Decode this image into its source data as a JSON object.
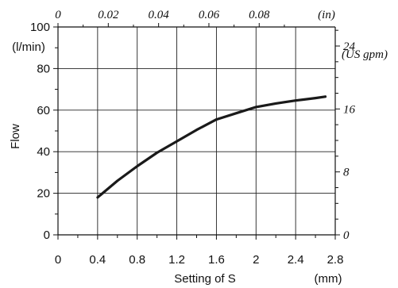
{
  "chart_data": {
    "type": "line",
    "title": "",
    "xlabel": "Setting of S",
    "xunit": "(mm)",
    "ylabel": "Flow",
    "yunit": "(l/min)",
    "xlim": [
      0,
      2.8
    ],
    "ylim": [
      0,
      100
    ],
    "xticks": [
      0,
      0.4,
      0.8,
      1.2,
      1.6,
      2,
      2.4,
      2.8
    ],
    "yticks": [
      0,
      20,
      40,
      60,
      80,
      100
    ],
    "top_axis": {
      "unit": "(in)",
      "ticks": [
        {
          "label": "0",
          "mm": 0
        },
        {
          "label": "0.02",
          "mm": 0.508
        },
        {
          "label": "0.04",
          "mm": 1.016
        },
        {
          "label": "0.06",
          "mm": 1.524
        },
        {
          "label": "0.08",
          "mm": 2.032
        }
      ]
    },
    "right_axis": {
      "unit": "(US gpm)",
      "ticks": [
        {
          "label": "0",
          "value": 0
        },
        {
          "label": "8",
          "value": 8
        },
        {
          "label": "16",
          "value": 16
        },
        {
          "label": "24",
          "value": 24
        }
      ],
      "lpm_per_unit": 3.785
    },
    "grid": true,
    "legend": "none",
    "series": [
      {
        "color": "#1a1a1a",
        "x": [
          0.4,
          0.6,
          0.8,
          1.0,
          1.2,
          1.4,
          1.6,
          1.8,
          2.0,
          2.2,
          2.4,
          2.6,
          2.7
        ],
        "y": [
          18,
          26,
          33,
          39.5,
          45,
          50.5,
          55.5,
          58.5,
          61.5,
          63.2,
          64.6,
          65.8,
          66.5
        ]
      }
    ]
  }
}
